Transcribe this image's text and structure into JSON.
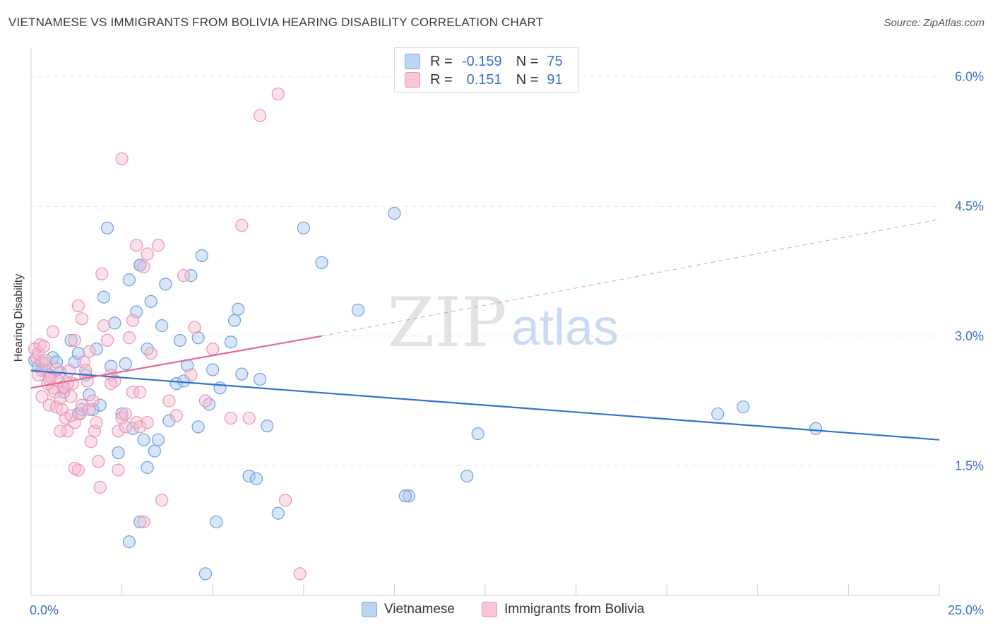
{
  "title": "VIETNAMESE VS IMMIGRANTS FROM BOLIVIA HEARING DISABILITY CORRELATION CHART",
  "source": "Source: ZipAtlas.com",
  "watermark": {
    "zip": "ZIP",
    "atlas": "atlas"
  },
  "colors": {
    "blue_fill": "#a8c8f0",
    "blue_stroke": "#6e9fe0",
    "blue_line": "#2f72cf",
    "pink_fill": "#f6bcd0",
    "pink_stroke": "#ec93b2",
    "pink_line": "#e46a93",
    "axis_text": "#3b6fc6",
    "grid": "#e6e6e6"
  },
  "legend": {
    "rows": [
      {
        "r_label": "R =",
        "r_value": "-0.159",
        "n_label": "N =",
        "n_value": "75"
      },
      {
        "r_label": "R =",
        "r_value": "0.151",
        "n_label": "N =",
        "n_value": "91"
      }
    ]
  },
  "chart_data": {
    "type": "scatter",
    "title": "VIETNAMESE VS IMMIGRANTS FROM BOLIVIA HEARING DISABILITY CORRELATION CHART",
    "xlabel": "",
    "ylabel": "Hearing Disability",
    "xlim": [
      0,
      25
    ],
    "ylim": [
      0,
      6.25
    ],
    "x_tick_labels": [
      "0.0%",
      "25.0%"
    ],
    "y_tick_labels": [
      "1.5%",
      "3.0%",
      "4.5%",
      "6.0%"
    ],
    "y_ticks": [
      1.5,
      3.0,
      4.5,
      6.0
    ],
    "grid": true,
    "legend_position": "top-center",
    "series": [
      {
        "name": "Vietnamese",
        "points": [
          [
            0.1,
            2.72
          ],
          [
            0.2,
            2.65
          ],
          [
            0.3,
            2.6
          ],
          [
            0.4,
            2.68
          ],
          [
            0.5,
            2.55
          ],
          [
            0.6,
            2.75
          ],
          [
            0.7,
            2.7
          ],
          [
            0.8,
            2.58
          ],
          [
            0.9,
            2.35
          ],
          [
            1.1,
            2.95
          ],
          [
            1.2,
            2.7
          ],
          [
            1.3,
            2.8
          ],
          [
            1.4,
            2.15
          ],
          [
            1.5,
            2.55
          ],
          [
            1.6,
            2.32
          ],
          [
            1.7,
            2.15
          ],
          [
            1.8,
            2.85
          ],
          [
            1.9,
            2.2
          ],
          [
            2.0,
            3.45
          ],
          [
            2.1,
            4.25
          ],
          [
            2.2,
            2.65
          ],
          [
            2.3,
            3.15
          ],
          [
            2.4,
            1.65
          ],
          [
            2.5,
            2.1
          ],
          [
            2.6,
            2.68
          ],
          [
            2.7,
            3.65
          ],
          [
            2.8,
            1.93
          ],
          [
            2.9,
            3.28
          ],
          [
            3.0,
            3.82
          ],
          [
            3.1,
            1.8
          ],
          [
            3.2,
            2.85
          ],
          [
            3.3,
            3.4
          ],
          [
            3.4,
            1.67
          ],
          [
            3.5,
            1.8
          ],
          [
            3.6,
            3.12
          ],
          [
            3.7,
            3.6
          ],
          [
            3.8,
            2.02
          ],
          [
            4.0,
            2.45
          ],
          [
            4.1,
            2.95
          ],
          [
            4.2,
            2.48
          ],
          [
            4.3,
            2.66
          ],
          [
            4.4,
            3.7
          ],
          [
            4.6,
            1.95
          ],
          [
            4.7,
            3.93
          ],
          [
            4.9,
            2.21
          ],
          [
            5.0,
            2.61
          ],
          [
            5.1,
            0.85
          ],
          [
            5.2,
            2.4
          ],
          [
            5.5,
            2.93
          ],
          [
            5.6,
            3.18
          ],
          [
            5.7,
            3.31
          ],
          [
            5.8,
            2.56
          ],
          [
            6.0,
            1.38
          ],
          [
            6.3,
            2.5
          ],
          [
            6.5,
            1.96
          ],
          [
            6.8,
            0.95
          ],
          [
            7.5,
            4.25
          ],
          [
            8.0,
            3.85
          ],
          [
            9.0,
            3.3
          ],
          [
            10.4,
            1.15
          ],
          [
            10.0,
            4.42
          ],
          [
            12.0,
            1.38
          ],
          [
            12.3,
            1.87
          ],
          [
            18.9,
            2.1
          ],
          [
            19.6,
            2.18
          ],
          [
            21.6,
            1.93
          ],
          [
            2.7,
            0.62
          ],
          [
            3.0,
            0.85
          ],
          [
            3.2,
            1.48
          ],
          [
            4.8,
            0.25
          ],
          [
            6.2,
            1.35
          ],
          [
            10.3,
            1.15
          ],
          [
            3.0,
            3.82
          ],
          [
            1.3,
            2.1
          ],
          [
            4.6,
            2.98
          ]
        ]
      },
      {
        "name": "Immigrants from Bolivia",
        "points": [
          [
            0.1,
            2.85
          ],
          [
            0.15,
            2.75
          ],
          [
            0.2,
            2.8
          ],
          [
            0.25,
            2.9
          ],
          [
            0.3,
            2.7
          ],
          [
            0.35,
            2.88
          ],
          [
            0.4,
            2.6
          ],
          [
            0.45,
            2.45
          ],
          [
            0.5,
            2.2
          ],
          [
            0.55,
            2.52
          ],
          [
            0.6,
            2.4
          ],
          [
            0.65,
            2.35
          ],
          [
            0.7,
            2.18
          ],
          [
            0.75,
            2.48
          ],
          [
            0.8,
            2.28
          ],
          [
            0.85,
            2.15
          ],
          [
            0.9,
            2.42
          ],
          [
            0.95,
            2.05
          ],
          [
            1.0,
            1.9
          ],
          [
            1.05,
            2.6
          ],
          [
            1.1,
            2.3
          ],
          [
            1.15,
            2.45
          ],
          [
            1.2,
            2.0
          ],
          [
            1.3,
            1.45
          ],
          [
            1.35,
            2.1
          ],
          [
            1.4,
            2.2
          ],
          [
            1.45,
            2.7
          ],
          [
            1.5,
            2.6
          ],
          [
            1.55,
            2.48
          ],
          [
            1.6,
            2.15
          ],
          [
            1.65,
            1.78
          ],
          [
            1.7,
            2.25
          ],
          [
            1.75,
            1.9
          ],
          [
            1.8,
            2.0
          ],
          [
            1.85,
            1.55
          ],
          [
            1.9,
            1.25
          ],
          [
            1.95,
            3.72
          ],
          [
            2.0,
            3.12
          ],
          [
            2.1,
            2.95
          ],
          [
            2.2,
            2.55
          ],
          [
            2.3,
            2.48
          ],
          [
            2.4,
            1.9
          ],
          [
            2.5,
            2.05
          ],
          [
            2.6,
            1.95
          ],
          [
            2.7,
            2.98
          ],
          [
            2.8,
            2.35
          ],
          [
            2.9,
            2.0
          ],
          [
            3.0,
            1.95
          ],
          [
            3.1,
            3.8
          ],
          [
            3.2,
            3.95
          ],
          [
            3.3,
            2.8
          ],
          [
            3.5,
            4.05
          ],
          [
            3.6,
            1.1
          ],
          [
            3.8,
            2.25
          ],
          [
            4.0,
            2.08
          ],
          [
            4.2,
            3.7
          ],
          [
            4.4,
            2.55
          ],
          [
            4.5,
            3.1
          ],
          [
            5.0,
            2.85
          ],
          [
            5.5,
            2.05
          ],
          [
            5.8,
            4.28
          ],
          [
            6.0,
            2.05
          ],
          [
            6.3,
            5.55
          ],
          [
            6.8,
            5.8
          ],
          [
            7.0,
            1.1
          ],
          [
            7.4,
            0.25
          ],
          [
            2.5,
            5.05
          ],
          [
            2.9,
            4.05
          ],
          [
            3.1,
            0.85
          ],
          [
            1.2,
            1.47
          ],
          [
            0.3,
            2.3
          ],
          [
            0.5,
            2.5
          ],
          [
            0.6,
            3.05
          ],
          [
            0.9,
            2.4
          ],
          [
            1.0,
            2.45
          ],
          [
            1.2,
            2.95
          ],
          [
            1.3,
            3.35
          ],
          [
            1.4,
            3.2
          ],
          [
            1.6,
            2.82
          ],
          [
            2.2,
            2.45
          ],
          [
            2.4,
            1.45
          ],
          [
            2.6,
            2.1
          ],
          [
            2.8,
            3.18
          ],
          [
            3.0,
            2.35
          ],
          [
            3.2,
            2.0
          ],
          [
            4.8,
            2.25
          ],
          [
            0.2,
            2.55
          ],
          [
            0.4,
            2.72
          ],
          [
            0.7,
            2.62
          ],
          [
            1.1,
            2.08
          ],
          [
            0.8,
            1.9
          ]
        ]
      }
    ],
    "trend_lines": [
      {
        "series": "Vietnamese",
        "x": [
          0,
          25
        ],
        "y": [
          2.6,
          1.8
        ],
        "style": "solid"
      },
      {
        "series": "Immigrants from Bolivia",
        "x": [
          0,
          8
        ],
        "y": [
          2.4,
          3.0
        ],
        "style": "solid"
      },
      {
        "series": "Immigrants from Bolivia",
        "x": [
          8,
          25
        ],
        "y": [
          3.0,
          4.35
        ],
        "style": "dashed"
      }
    ]
  },
  "bottom_legend": [
    {
      "label": "Vietnamese"
    },
    {
      "label": "Immigrants from Bolivia"
    }
  ]
}
